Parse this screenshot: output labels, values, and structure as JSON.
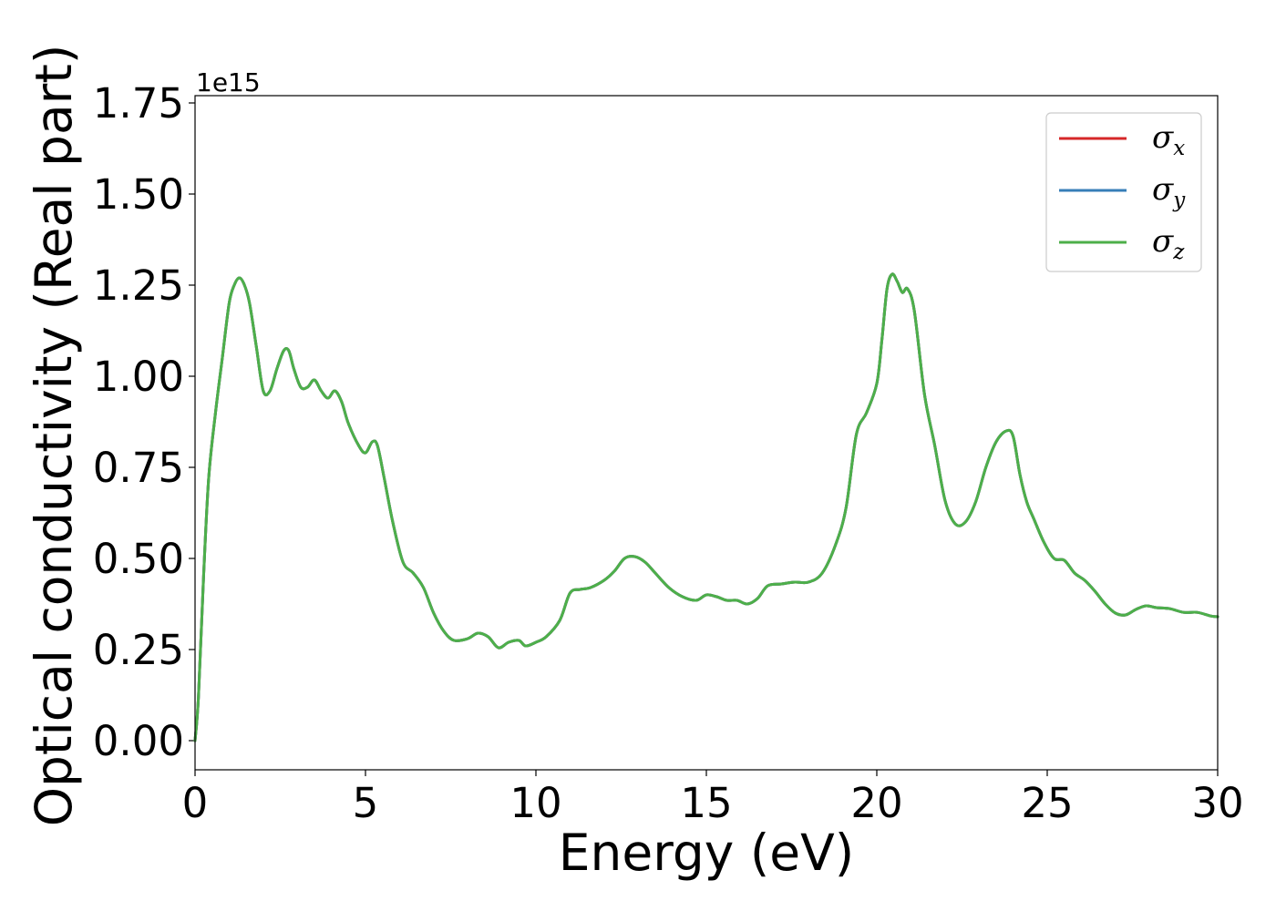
{
  "chart_data": {
    "type": "line",
    "xlabel": "Energy (eV)",
    "ylabel": "Optical conductivity (Real part)",
    "y_offset_label": "1e15",
    "xlim": [
      0,
      30
    ],
    "ylim": [
      -0.08,
      1.77
    ],
    "x_ticks": [
      0,
      5,
      10,
      15,
      20,
      25,
      30
    ],
    "x_tick_labels": [
      "0",
      "5",
      "10",
      "15",
      "20",
      "25",
      "30"
    ],
    "y_ticks": [
      0,
      0.25,
      0.5,
      0.75,
      1.0,
      1.25,
      1.5,
      1.75
    ],
    "y_tick_labels": [
      "0.00",
      "0.25",
      "0.50",
      "0.75",
      "1.00",
      "1.25",
      "1.50",
      "1.75"
    ],
    "grid": false,
    "legend_position": "top-right",
    "x": [
      0,
      0.1,
      0.25,
      0.4,
      0.6,
      0.8,
      1.0,
      1.15,
      1.3,
      1.45,
      1.6,
      1.8,
      2.0,
      2.2,
      2.4,
      2.6,
      2.75,
      2.9,
      3.1,
      3.3,
      3.5,
      3.7,
      3.9,
      4.1,
      4.3,
      4.5,
      4.8,
      5.0,
      5.2,
      5.35,
      5.55,
      5.8,
      6.1,
      6.4,
      6.7,
      7.0,
      7.3,
      7.6,
      8.0,
      8.3,
      8.6,
      8.9,
      9.2,
      9.5,
      9.7,
      10.0,
      10.3,
      10.7,
      11.0,
      11.3,
      11.6,
      12.0,
      12.3,
      12.6,
      12.9,
      13.2,
      13.5,
      13.9,
      14.3,
      14.7,
      15.0,
      15.3,
      15.6,
      15.9,
      16.2,
      16.5,
      16.8,
      17.2,
      17.6,
      18.0,
      18.4,
      18.8,
      19.1,
      19.4,
      19.7,
      20.0,
      20.15,
      20.3,
      20.45,
      20.6,
      20.75,
      20.9,
      21.1,
      21.4,
      21.7,
      22.0,
      22.3,
      22.6,
      22.9,
      23.2,
      23.5,
      23.8,
      24.0,
      24.2,
      24.4,
      24.6,
      24.9,
      25.2,
      25.5,
      25.8,
      26.1,
      26.4,
      26.7,
      27.0,
      27.3,
      27.6,
      27.9,
      28.2,
      28.6,
      29.0,
      29.4,
      29.8,
      30.0
    ],
    "series": [
      {
        "name": "σ_x",
        "color": "#d62728",
        "values": [
          0.0,
          0.12,
          0.45,
          0.72,
          0.9,
          1.05,
          1.2,
          1.25,
          1.27,
          1.25,
          1.2,
          1.08,
          0.96,
          0.96,
          1.02,
          1.07,
          1.07,
          1.02,
          0.97,
          0.97,
          0.99,
          0.96,
          0.94,
          0.96,
          0.93,
          0.87,
          0.81,
          0.79,
          0.82,
          0.81,
          0.72,
          0.6,
          0.49,
          0.46,
          0.42,
          0.35,
          0.3,
          0.275,
          0.28,
          0.295,
          0.285,
          0.255,
          0.27,
          0.275,
          0.26,
          0.27,
          0.285,
          0.33,
          0.405,
          0.415,
          0.42,
          0.44,
          0.465,
          0.5,
          0.505,
          0.49,
          0.46,
          0.42,
          0.395,
          0.385,
          0.4,
          0.395,
          0.385,
          0.385,
          0.375,
          0.39,
          0.425,
          0.43,
          0.435,
          0.435,
          0.46,
          0.54,
          0.64,
          0.84,
          0.9,
          0.98,
          1.1,
          1.24,
          1.28,
          1.26,
          1.23,
          1.24,
          1.18,
          0.95,
          0.81,
          0.66,
          0.595,
          0.6,
          0.655,
          0.75,
          0.82,
          0.85,
          0.835,
          0.73,
          0.655,
          0.61,
          0.545,
          0.5,
          0.495,
          0.46,
          0.44,
          0.41,
          0.375,
          0.35,
          0.345,
          0.36,
          0.37,
          0.365,
          0.362,
          0.352,
          0.352,
          0.342,
          0.34
        ]
      },
      {
        "name": "σ_y",
        "color": "#377eb8",
        "values": [
          0.0,
          0.12,
          0.45,
          0.72,
          0.9,
          1.05,
          1.2,
          1.25,
          1.27,
          1.25,
          1.2,
          1.08,
          0.96,
          0.96,
          1.02,
          1.07,
          1.07,
          1.02,
          0.97,
          0.97,
          0.99,
          0.96,
          0.94,
          0.96,
          0.93,
          0.87,
          0.81,
          0.79,
          0.82,
          0.81,
          0.72,
          0.6,
          0.49,
          0.46,
          0.42,
          0.35,
          0.3,
          0.275,
          0.28,
          0.295,
          0.285,
          0.255,
          0.27,
          0.275,
          0.26,
          0.27,
          0.285,
          0.33,
          0.405,
          0.415,
          0.42,
          0.44,
          0.465,
          0.5,
          0.505,
          0.49,
          0.46,
          0.42,
          0.395,
          0.385,
          0.4,
          0.395,
          0.385,
          0.385,
          0.375,
          0.39,
          0.425,
          0.43,
          0.435,
          0.435,
          0.46,
          0.54,
          0.64,
          0.84,
          0.9,
          0.98,
          1.1,
          1.24,
          1.28,
          1.26,
          1.23,
          1.24,
          1.18,
          0.95,
          0.81,
          0.66,
          0.595,
          0.6,
          0.655,
          0.75,
          0.82,
          0.85,
          0.835,
          0.73,
          0.655,
          0.61,
          0.545,
          0.5,
          0.495,
          0.46,
          0.44,
          0.41,
          0.375,
          0.35,
          0.345,
          0.36,
          0.37,
          0.365,
          0.362,
          0.352,
          0.352,
          0.342,
          0.34
        ]
      },
      {
        "name": "σ_z",
        "color": "#4daf4a",
        "values": [
          0.0,
          0.12,
          0.45,
          0.72,
          0.9,
          1.05,
          1.2,
          1.25,
          1.27,
          1.25,
          1.2,
          1.08,
          0.96,
          0.96,
          1.02,
          1.07,
          1.07,
          1.02,
          0.97,
          0.97,
          0.99,
          0.96,
          0.94,
          0.96,
          0.93,
          0.87,
          0.81,
          0.79,
          0.82,
          0.81,
          0.72,
          0.6,
          0.49,
          0.46,
          0.42,
          0.35,
          0.3,
          0.275,
          0.28,
          0.295,
          0.285,
          0.255,
          0.27,
          0.275,
          0.26,
          0.27,
          0.285,
          0.33,
          0.405,
          0.415,
          0.42,
          0.44,
          0.465,
          0.5,
          0.505,
          0.49,
          0.46,
          0.42,
          0.395,
          0.385,
          0.4,
          0.395,
          0.385,
          0.385,
          0.375,
          0.39,
          0.425,
          0.43,
          0.435,
          0.435,
          0.46,
          0.54,
          0.64,
          0.84,
          0.9,
          0.98,
          1.1,
          1.24,
          1.28,
          1.26,
          1.23,
          1.24,
          1.18,
          0.95,
          0.81,
          0.66,
          0.595,
          0.6,
          0.655,
          0.75,
          0.82,
          0.85,
          0.835,
          0.73,
          0.655,
          0.61,
          0.545,
          0.5,
          0.495,
          0.46,
          0.44,
          0.41,
          0.375,
          0.35,
          0.345,
          0.36,
          0.37,
          0.365,
          0.362,
          0.352,
          0.352,
          0.342,
          0.34
        ]
      }
    ],
    "legend": [
      {
        "symbol": "σ",
        "subscript": "x",
        "color": "#d62728"
      },
      {
        "symbol": "σ",
        "subscript": "y",
        "color": "#377eb8"
      },
      {
        "symbol": "σ",
        "subscript": "z",
        "color": "#4daf4a"
      }
    ]
  }
}
